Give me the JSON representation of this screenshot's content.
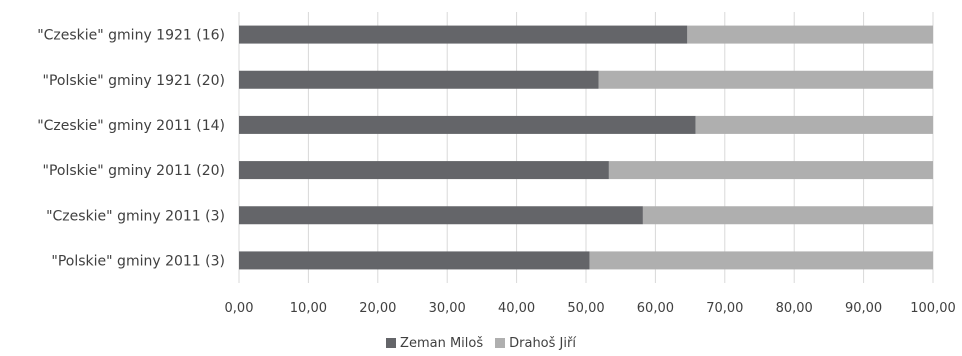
{
  "chart_data": {
    "type": "bar",
    "orientation": "horizontal",
    "stacked": true,
    "categories": [
      "\"Czeskie\" gminy 1921 (16)",
      "\"Polskie\" gminy 1921 (20)",
      "\"Czeskie\" gminy 2011 (14)",
      "\"Polskie\" gminy 2011 (20)",
      "\"Czeskie\" gminy 2011 (3)",
      "\"Polskie\" gminy 2011 (3)"
    ],
    "series": [
      {
        "name": "Zeman Miloš",
        "color": "#646569",
        "values": [
          64.6,
          51.8,
          65.8,
          53.3,
          58.2,
          50.5
        ]
      },
      {
        "name": "Drahoš Jiří",
        "color": "#afafaf",
        "values": [
          35.4,
          48.2,
          34.2,
          46.7,
          41.8,
          49.5
        ]
      }
    ],
    "x_ticks": [
      "0,00",
      "10,00",
      "20,00",
      "30,00",
      "40,00",
      "50,00",
      "60,00",
      "70,00",
      "80,00",
      "90,00",
      "100,00"
    ],
    "xlim": [
      0,
      100
    ],
    "grid": true,
    "legend_position": "bottom"
  }
}
